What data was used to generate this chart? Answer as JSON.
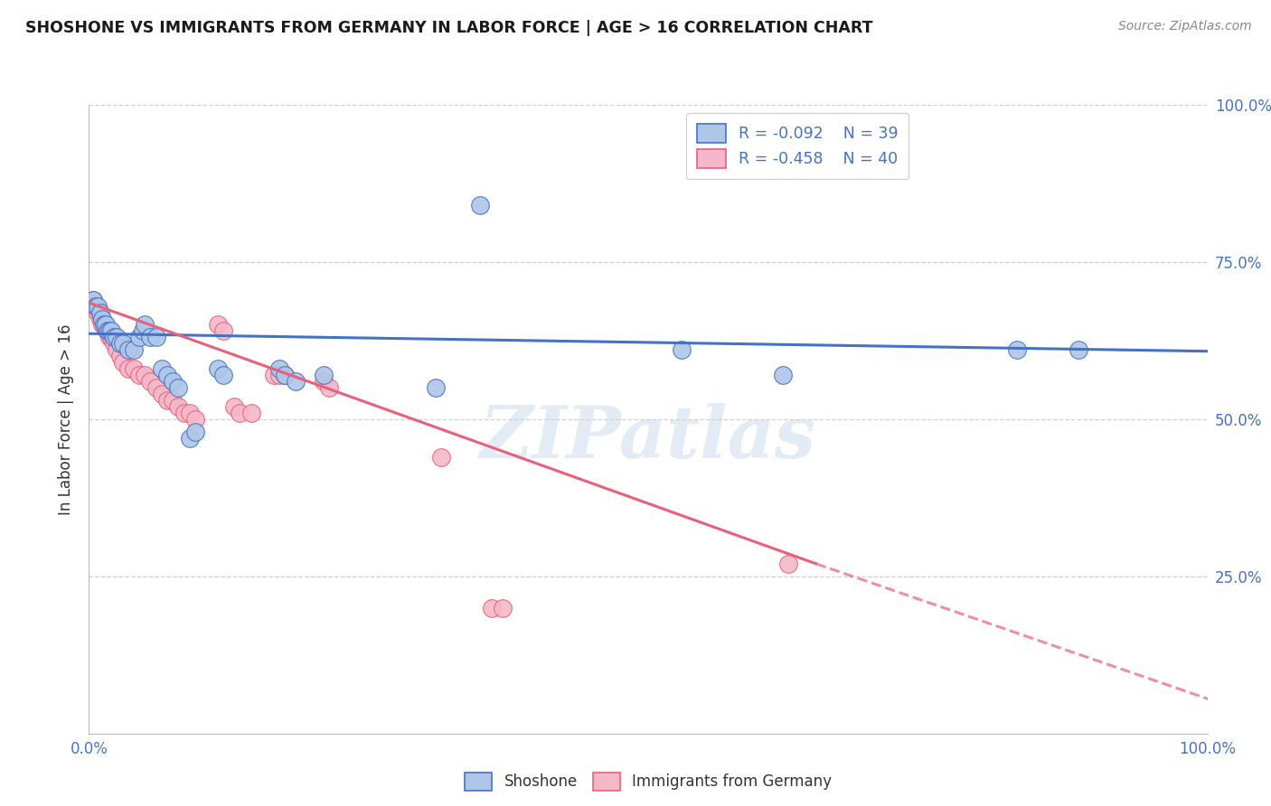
{
  "title": "SHOSHONE VS IMMIGRANTS FROM GERMANY IN LABOR FORCE | AGE > 16 CORRELATION CHART",
  "source": "Source: ZipAtlas.com",
  "ylabel": "In Labor Force | Age > 16",
  "watermark": "ZIPatlas",
  "legend_r1": "R = -0.092",
  "legend_n1": "N = 39",
  "legend_r2": "R = -0.458",
  "legend_n2": "N = 40",
  "xlim": [
    0.0,
    1.0
  ],
  "ylim": [
    0.0,
    1.0
  ],
  "background_color": "#ffffff",
  "grid_color": "#d0d0d0",
  "shoshone_color": "#aec6e8",
  "germany_color": "#f5b8c8",
  "shoshone_line_color": "#4472c4",
  "germany_line_color": "#e8607a",
  "shoshone_scatter": [
    [
      0.004,
      0.69
    ],
    [
      0.006,
      0.68
    ],
    [
      0.008,
      0.68
    ],
    [
      0.01,
      0.67
    ],
    [
      0.012,
      0.66
    ],
    [
      0.013,
      0.65
    ],
    [
      0.015,
      0.65
    ],
    [
      0.017,
      0.64
    ],
    [
      0.018,
      0.64
    ],
    [
      0.02,
      0.64
    ],
    [
      0.022,
      0.63
    ],
    [
      0.025,
      0.63
    ],
    [
      0.028,
      0.62
    ],
    [
      0.03,
      0.62
    ],
    [
      0.035,
      0.61
    ],
    [
      0.04,
      0.61
    ],
    [
      0.045,
      0.63
    ],
    [
      0.048,
      0.64
    ],
    [
      0.05,
      0.65
    ],
    [
      0.055,
      0.63
    ],
    [
      0.06,
      0.63
    ],
    [
      0.065,
      0.58
    ],
    [
      0.07,
      0.57
    ],
    [
      0.075,
      0.56
    ],
    [
      0.08,
      0.55
    ],
    [
      0.09,
      0.47
    ],
    [
      0.095,
      0.48
    ],
    [
      0.115,
      0.58
    ],
    [
      0.12,
      0.57
    ],
    [
      0.17,
      0.58
    ],
    [
      0.175,
      0.57
    ],
    [
      0.185,
      0.56
    ],
    [
      0.21,
      0.57
    ],
    [
      0.31,
      0.55
    ],
    [
      0.35,
      0.84
    ],
    [
      0.53,
      0.61
    ],
    [
      0.62,
      0.57
    ],
    [
      0.83,
      0.61
    ],
    [
      0.885,
      0.61
    ]
  ],
  "germany_scatter": [
    [
      0.004,
      0.69
    ],
    [
      0.006,
      0.68
    ],
    [
      0.008,
      0.67
    ],
    [
      0.01,
      0.66
    ],
    [
      0.012,
      0.65
    ],
    [
      0.014,
      0.65
    ],
    [
      0.016,
      0.64
    ],
    [
      0.018,
      0.63
    ],
    [
      0.02,
      0.63
    ],
    [
      0.022,
      0.62
    ],
    [
      0.025,
      0.61
    ],
    [
      0.028,
      0.6
    ],
    [
      0.03,
      0.59
    ],
    [
      0.035,
      0.58
    ],
    [
      0.04,
      0.58
    ],
    [
      0.045,
      0.57
    ],
    [
      0.05,
      0.57
    ],
    [
      0.055,
      0.56
    ],
    [
      0.06,
      0.55
    ],
    [
      0.065,
      0.54
    ],
    [
      0.07,
      0.53
    ],
    [
      0.075,
      0.53
    ],
    [
      0.08,
      0.52
    ],
    [
      0.085,
      0.51
    ],
    [
      0.09,
      0.51
    ],
    [
      0.095,
      0.5
    ],
    [
      0.115,
      0.65
    ],
    [
      0.12,
      0.64
    ],
    [
      0.13,
      0.52
    ],
    [
      0.135,
      0.51
    ],
    [
      0.145,
      0.51
    ],
    [
      0.165,
      0.57
    ],
    [
      0.17,
      0.57
    ],
    [
      0.175,
      0.57
    ],
    [
      0.21,
      0.56
    ],
    [
      0.215,
      0.55
    ],
    [
      0.315,
      0.44
    ],
    [
      0.36,
      0.2
    ],
    [
      0.37,
      0.2
    ],
    [
      0.625,
      0.27
    ]
  ],
  "shoshone_line": [
    [
      0.0,
      0.636
    ],
    [
      1.0,
      0.608
    ]
  ],
  "germany_line_solid": [
    [
      0.0,
      0.685
    ],
    [
      0.65,
      0.27
    ]
  ],
  "germany_line_dashed": [
    [
      0.65,
      0.27
    ],
    [
      1.02,
      0.043
    ]
  ]
}
